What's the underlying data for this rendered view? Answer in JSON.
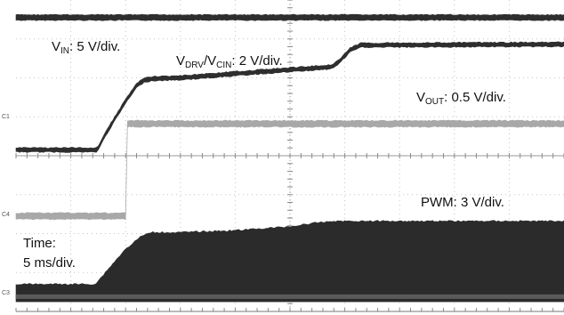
{
  "chart_data": {
    "type": "line",
    "title": "",
    "xlabel": "",
    "ylabel": "",
    "grid": true,
    "time_scale": {
      "line1": "Time:",
      "line2": "5 ms/div."
    },
    "xlim": [
      0,
      10
    ],
    "ylim": [
      -4,
      4
    ],
    "x_unit": "div",
    "y_unit": "div",
    "labels": {
      "vin": {
        "main": "V",
        "sub": "IN",
        "rest": ": 5 V/div."
      },
      "vdrv": {
        "main1": "V",
        "sub1": "DRV",
        "slash": "/V",
        "sub2": "CIN",
        "rest": ": 2 V/div."
      },
      "vout": {
        "main": "V",
        "sub": "OUT",
        "rest": ": 0.5 V/div."
      },
      "pwm": {
        "text": "PWM: 3 V/div."
      }
    },
    "channel_markers": {
      "c1": "C1",
      "c4": "C4",
      "c3": "C3"
    },
    "series": [
      {
        "key": "vin",
        "color": "#2e2e2e",
        "thickness": 0.14,
        "noise": 0.025,
        "x": [
          0,
          10
        ],
        "y": [
          3.55,
          3.55
        ]
      },
      {
        "key": "vdrv",
        "color": "#2e2e2e",
        "thickness": 0.11,
        "noise": 0.03,
        "x": [
          0,
          1.48,
          1.65,
          2.0,
          2.2,
          2.35,
          2.5,
          3.0,
          4.5,
          5.75,
          5.9,
          6.1,
          6.3,
          10.0
        ],
        "y": [
          0.15,
          0.15,
          0.6,
          1.4,
          1.8,
          1.95,
          1.98,
          2.0,
          2.16,
          2.28,
          2.42,
          2.72,
          2.84,
          2.86
        ]
      },
      {
        "key": "vout",
        "color": "#a8a8a8",
        "thickness": 0.16,
        "noise": 0.03,
        "x": [
          0,
          2.0,
          2.001,
          10.0
        ],
        "y": [
          -1.55,
          -1.55,
          0.82,
          0.82
        ]
      },
      {
        "key": "pwm",
        "color": "#2b2b2b",
        "band": true,
        "noise": 0.04,
        "x": [
          0,
          1.45,
          1.75,
          2.0,
          2.3,
          2.5,
          3.0,
          4.0,
          5.0,
          5.5,
          5.8,
          10.0
        ],
        "y_top": [
          -3.3,
          -3.3,
          -2.8,
          -2.4,
          -2.05,
          -1.97,
          -1.97,
          -1.92,
          -1.82,
          -1.72,
          -1.68,
          -1.68
        ],
        "y_bottom": [
          -3.75,
          -3.75,
          -3.75,
          -3.75,
          -3.75,
          -3.75,
          -3.75,
          -3.75,
          -3.75,
          -3.75,
          -3.75,
          -3.75
        ]
      },
      {
        "key": "pwm_stripe",
        "color": "#5a5a5a",
        "thickness": 0.1,
        "noise": 0.0,
        "x": [
          0,
          10
        ],
        "y": [
          -3.62,
          -3.62
        ]
      }
    ]
  }
}
